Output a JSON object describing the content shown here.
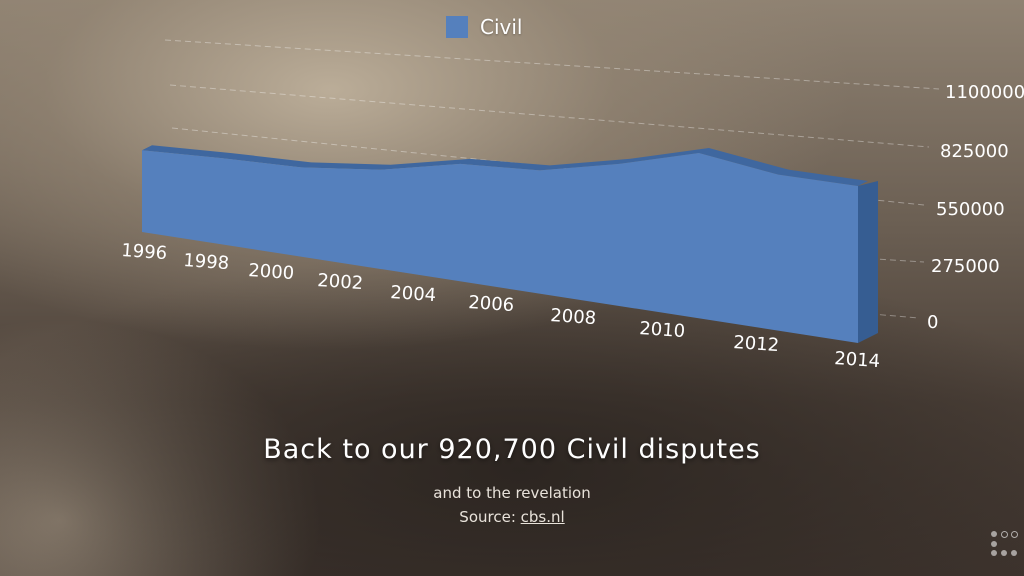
{
  "colors": {
    "series_front": "#5580bd",
    "series_top": "#3f679f",
    "series_side": "#365d92",
    "text": "#ffffff"
  },
  "chart_data": {
    "type": "area",
    "x": [
      "1996",
      "1998",
      "2000",
      "2002",
      "2004",
      "2006",
      "2008",
      "2010",
      "2012",
      "2014"
    ],
    "series": [
      {
        "name": "Civil",
        "values": [
          830000,
          810000,
          780000,
          810000,
          900000,
          890000,
          970000,
          1070000,
          960000,
          920700
        ]
      }
    ],
    "y_ticks": [
      "0",
      "275000",
      "550000",
      "825000",
      "1100000"
    ],
    "ylim": [
      0,
      1100000
    ],
    "grid": true,
    "legend_position": "top-center",
    "projection": "3d-perspective"
  },
  "caption": {
    "headline": "Back to our 920,700 Civil disputes",
    "subline": "and to the revelation",
    "source_prefix": "Source:",
    "source_link": "cbs.nl"
  },
  "navigation": {
    "icon": "slide-navigation-dots-icon"
  }
}
